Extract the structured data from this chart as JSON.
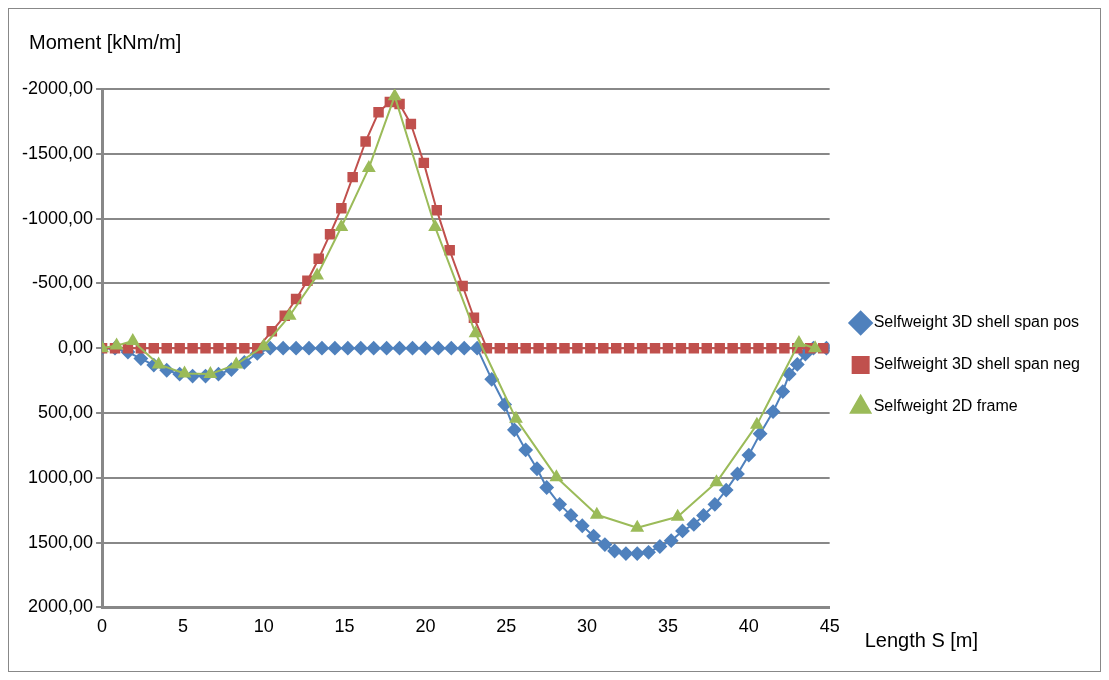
{
  "chart_data": {
    "type": "line",
    "xlabel": "Length S [m]",
    "ylabel": "Moment [kNm/m]",
    "xlim": [
      0,
      45
    ],
    "xticks": [
      0,
      5,
      10,
      15,
      20,
      25,
      30,
      35,
      40,
      45
    ],
    "ylim": [
      2000,
      -2000
    ],
    "yticks": [
      {
        "value": -2000,
        "label": "-2000,00"
      },
      {
        "value": -1500,
        "label": "-1500,00"
      },
      {
        "value": -1000,
        "label": "-1000,00"
      },
      {
        "value": -500,
        "label": "-500,00"
      },
      {
        "value": 0,
        "label": "0,00"
      },
      {
        "value": 500,
        "label": "500,00"
      },
      {
        "value": 1000,
        "label": "1000,00"
      },
      {
        "value": 1500,
        "label": "1500,00"
      },
      {
        "value": 2000,
        "label": "2000,00"
      }
    ],
    "grid": "y",
    "legend": "right",
    "series": [
      {
        "name": "Selfweight 3D shell span pos",
        "color": "#4f81bd",
        "marker": "diamond",
        "x": [
          0,
          0.8,
          1.6,
          2.4,
          3.2,
          4.0,
          4.8,
          5.6,
          6.4,
          7.2,
          8.0,
          8.8,
          9.6,
          10.4,
          11.2,
          12.0,
          12.8,
          13.6,
          14.4,
          15.2,
          16.0,
          16.8,
          17.6,
          18.4,
          19.2,
          20.0,
          20.8,
          21.6,
          22.4,
          23.2,
          24.1,
          24.9,
          25.5,
          26.2,
          26.9,
          27.5,
          28.3,
          29.0,
          29.7,
          30.4,
          31.1,
          31.7,
          32.4,
          33.1,
          33.8,
          34.5,
          35.2,
          35.9,
          36.6,
          37.2,
          37.9,
          38.6,
          39.3,
          40.0,
          40.7,
          41.5,
          42.1,
          42.5,
          43.0,
          43.5,
          44.0,
          44.8
        ],
        "values": [
          0,
          0,
          30,
          80,
          130,
          170,
          200,
          215,
          215,
          200,
          165,
          110,
          40,
          0,
          0,
          0,
          0,
          0,
          0,
          0,
          0,
          0,
          0,
          0,
          0,
          0,
          0,
          0,
          0,
          0,
          240,
          435,
          630,
          785,
          930,
          1075,
          1205,
          1290,
          1370,
          1450,
          1515,
          1565,
          1585,
          1585,
          1575,
          1530,
          1485,
          1410,
          1360,
          1290,
          1205,
          1095,
          970,
          825,
          660,
          490,
          335,
          200,
          125,
          45,
          0,
          0
        ]
      },
      {
        "name": "Selfweight 3D shell span neg",
        "color": "#c0504d",
        "marker": "square",
        "x": [
          0,
          0.8,
          1.6,
          2.4,
          3.2,
          4.0,
          4.8,
          5.6,
          6.4,
          7.2,
          8.0,
          8.8,
          9.6,
          10.5,
          11.3,
          12.0,
          12.7,
          13.4,
          14.1,
          14.8,
          15.5,
          16.3,
          17.1,
          17.8,
          18.4,
          19.1,
          19.9,
          20.7,
          21.5,
          22.3,
          23.0,
          23.8,
          24.6,
          25.4,
          26.2,
          27.0,
          27.8,
          28.6,
          29.4,
          30.2,
          31.0,
          31.8,
          32.6,
          33.4,
          34.2,
          35.0,
          35.8,
          36.6,
          37.4,
          38.2,
          39.0,
          39.8,
          40.6,
          41.4,
          42.2,
          43.0,
          43.8,
          44.6
        ],
        "values": [
          0,
          0,
          0,
          0,
          0,
          0,
          0,
          0,
          0,
          0,
          0,
          0,
          0,
          -130,
          -250,
          -380,
          -520,
          -690,
          -880,
          -1080,
          -1320,
          -1595,
          -1820,
          -1900,
          -1885,
          -1730,
          -1430,
          -1065,
          -755,
          -480,
          -235,
          0,
          0,
          0,
          0,
          0,
          0,
          0,
          0,
          0,
          0,
          0,
          0,
          0,
          0,
          0,
          0,
          0,
          0,
          0,
          0,
          0,
          0,
          0,
          0,
          0,
          0,
          0
        ]
      },
      {
        "name": "Selfweight 2D frame",
        "color": "#9bbb59",
        "marker": "triangle",
        "x": [
          0,
          0.9,
          1.9,
          3.5,
          5.1,
          6.7,
          8.3,
          10.0,
          11.6,
          13.3,
          14.8,
          16.5,
          18.1,
          20.6,
          23.1,
          25.6,
          28.1,
          30.6,
          33.1,
          35.6,
          38.0,
          40.5,
          43.1,
          44.1
        ],
        "values": [
          0,
          -20,
          -55,
          125,
          195,
          200,
          125,
          -15,
          -250,
          -560,
          -935,
          -1390,
          -1945,
          -935,
          -115,
          545,
          995,
          1285,
          1385,
          1300,
          1035,
          590,
          -40,
          0
        ]
      }
    ]
  }
}
